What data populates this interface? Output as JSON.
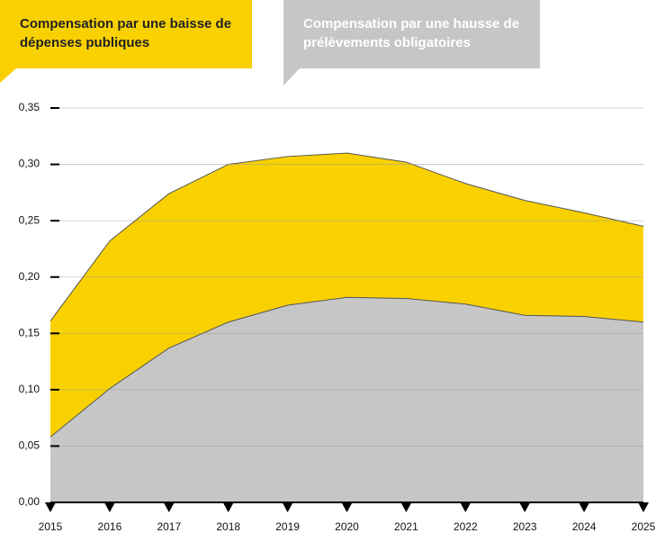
{
  "chart_data": {
    "type": "area",
    "categories": [
      "2015",
      "2016",
      "2017",
      "2018",
      "2019",
      "2020",
      "2021",
      "2022",
      "2023",
      "2024",
      "2025"
    ],
    "series": [
      {
        "name": "Compensation par une baisse de dépenses publiques",
        "color": "#f9d100",
        "values": [
          0.161,
          0.232,
          0.274,
          0.3,
          0.307,
          0.31,
          0.302,
          0.283,
          0.268,
          0.257,
          0.245
        ]
      },
      {
        "name": "Compensation par une hausse de prélèvements obligatoires",
        "color": "#c6c6c6",
        "values": [
          0.058,
          0.101,
          0.137,
          0.16,
          0.175,
          0.182,
          0.181,
          0.176,
          0.166,
          0.165,
          0.16
        ]
      }
    ],
    "ylim": [
      0,
      0.35
    ],
    "yticks": [
      {
        "value": 0,
        "label": "0,00"
      },
      {
        "value": 0.05,
        "label": "0,05"
      },
      {
        "value": 0.1,
        "label": "0,10"
      },
      {
        "value": 0.15,
        "label": "0,15"
      },
      {
        "value": 0.2,
        "label": "0,20"
      },
      {
        "value": 0.25,
        "label": "0,25"
      },
      {
        "value": 0.3,
        "label": "0,30"
      },
      {
        "value": 0.35,
        "label": "0,35"
      }
    ],
    "grid": true
  }
}
